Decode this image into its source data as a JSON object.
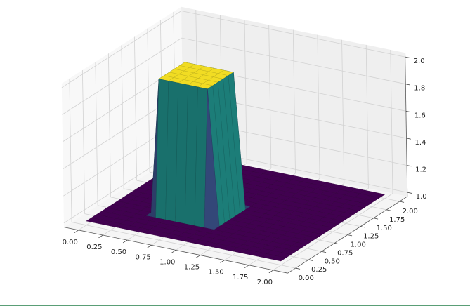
{
  "chart_data": {
    "type": "surface",
    "colormap": "viridis",
    "grid": true,
    "x": [
      0,
      0.1,
      0.2,
      0.3,
      0.4,
      0.5,
      0.6,
      0.7,
      0.8,
      0.9,
      1,
      1.1,
      1.2,
      1.3,
      1.4,
      1.5,
      1.6,
      1.7,
      1.8,
      1.9,
      2
    ],
    "y": [
      0,
      0.1,
      0.2,
      0.3,
      0.4,
      0.5,
      0.6,
      0.7,
      0.8,
      0.9,
      1,
      1.1,
      1.2,
      1.3,
      1.4,
      1.5,
      1.6,
      1.7,
      1.8,
      1.9,
      2
    ],
    "z": [
      [
        1,
        1,
        1,
        1,
        1,
        1,
        1,
        1,
        1,
        1,
        1,
        1,
        1,
        1,
        1,
        1,
        1,
        1,
        1,
        1,
        1
      ],
      [
        1,
        1,
        1,
        1,
        1,
        1,
        1,
        1,
        1,
        1,
        1,
        1,
        1,
        1,
        1,
        1,
        1,
        1,
        1,
        1,
        1
      ],
      [
        1,
        1,
        1,
        1,
        1,
        1,
        1,
        1,
        1,
        1,
        1,
        1,
        1,
        1,
        1,
        1,
        1,
        1,
        1,
        1,
        1
      ],
      [
        1,
        1,
        1,
        1,
        1,
        1,
        1,
        1,
        1,
        1,
        1,
        1,
        1,
        1,
        1,
        1,
        1,
        1,
        1,
        1,
        1
      ],
      [
        1,
        1,
        1,
        1,
        1,
        1,
        1,
        1,
        1,
        1,
        1,
        1,
        1,
        1,
        1,
        1,
        1,
        1,
        1,
        1,
        1
      ],
      [
        1,
        1,
        1,
        1,
        1,
        2,
        2,
        2,
        2,
        2,
        2,
        1,
        1,
        1,
        1,
        1,
        1,
        1,
        1,
        1,
        1
      ],
      [
        1,
        1,
        1,
        1,
        1,
        2,
        2,
        2,
        2,
        2,
        2,
        1,
        1,
        1,
        1,
        1,
        1,
        1,
        1,
        1,
        1
      ],
      [
        1,
        1,
        1,
        1,
        1,
        2,
        2,
        2,
        2,
        2,
        2,
        1,
        1,
        1,
        1,
        1,
        1,
        1,
        1,
        1,
        1
      ],
      [
        1,
        1,
        1,
        1,
        1,
        2,
        2,
        2,
        2,
        2,
        2,
        1,
        1,
        1,
        1,
        1,
        1,
        1,
        1,
        1,
        1
      ],
      [
        1,
        1,
        1,
        1,
        1,
        2,
        2,
        2,
        2,
        2,
        2,
        1,
        1,
        1,
        1,
        1,
        1,
        1,
        1,
        1,
        1
      ],
      [
        1,
        1,
        1,
        1,
        1,
        2,
        2,
        2,
        2,
        2,
        2,
        1,
        1,
        1,
        1,
        1,
        1,
        1,
        1,
        1,
        1
      ],
      [
        1,
        1,
        1,
        1,
        1,
        1,
        1,
        1,
        1,
        1,
        1,
        1,
        1,
        1,
        1,
        1,
        1,
        1,
        1,
        1,
        1
      ],
      [
        1,
        1,
        1,
        1,
        1,
        1,
        1,
        1,
        1,
        1,
        1,
        1,
        1,
        1,
        1,
        1,
        1,
        1,
        1,
        1,
        1
      ],
      [
        1,
        1,
        1,
        1,
        1,
        1,
        1,
        1,
        1,
        1,
        1,
        1,
        1,
        1,
        1,
        1,
        1,
        1,
        1,
        1,
        1
      ],
      [
        1,
        1,
        1,
        1,
        1,
        1,
        1,
        1,
        1,
        1,
        1,
        1,
        1,
        1,
        1,
        1,
        1,
        1,
        1,
        1,
        1
      ],
      [
        1,
        1,
        1,
        1,
        1,
        1,
        1,
        1,
        1,
        1,
        1,
        1,
        1,
        1,
        1,
        1,
        1,
        1,
        1,
        1,
        1
      ],
      [
        1,
        1,
        1,
        1,
        1,
        1,
        1,
        1,
        1,
        1,
        1,
        1,
        1,
        1,
        1,
        1,
        1,
        1,
        1,
        1,
        1
      ],
      [
        1,
        1,
        1,
        1,
        1,
        1,
        1,
        1,
        1,
        1,
        1,
        1,
        1,
        1,
        1,
        1,
        1,
        1,
        1,
        1,
        1
      ],
      [
        1,
        1,
        1,
        1,
        1,
        1,
        1,
        1,
        1,
        1,
        1,
        1,
        1,
        1,
        1,
        1,
        1,
        1,
        1,
        1,
        1
      ],
      [
        1,
        1,
        1,
        1,
        1,
        1,
        1,
        1,
        1,
        1,
        1,
        1,
        1,
        1,
        1,
        1,
        1,
        1,
        1,
        1,
        1
      ],
      [
        1,
        1,
        1,
        1,
        1,
        1,
        1,
        1,
        1,
        1,
        1,
        1,
        1,
        1,
        1,
        1,
        1,
        1,
        1,
        1,
        1
      ]
    ],
    "xlim": [
      -0.15,
      2.15
    ],
    "ylim": [
      -0.15,
      2.15
    ],
    "zlim": [
      0.97,
      2.03
    ],
    "xticks": [
      {
        "value": 0,
        "label": "0.00"
      },
      {
        "value": 0.25,
        "label": "0.25"
      },
      {
        "value": 0.5,
        "label": "0.50"
      },
      {
        "value": 0.75,
        "label": "0.75"
      },
      {
        "value": 1,
        "label": "1.00"
      },
      {
        "value": 1.25,
        "label": "1.25"
      },
      {
        "value": 1.5,
        "label": "1.50"
      },
      {
        "value": 1.75,
        "label": "1.75"
      },
      {
        "value": 2,
        "label": "2.00"
      }
    ],
    "yticks": [
      {
        "value": 0,
        "label": "0.00"
      },
      {
        "value": 0.25,
        "label": "0.25"
      },
      {
        "value": 0.5,
        "label": "0.50"
      },
      {
        "value": 0.75,
        "label": "0.75"
      },
      {
        "value": 1,
        "label": "1.00"
      },
      {
        "value": 1.25,
        "label": "1.25"
      },
      {
        "value": 1.5,
        "label": "1.50"
      },
      {
        "value": 1.75,
        "label": "1.75"
      },
      {
        "value": 2,
        "label": "2.00"
      }
    ],
    "zticks": [
      {
        "value": 1,
        "label": "1.0"
      },
      {
        "value": 1.2,
        "label": "1.2"
      },
      {
        "value": 1.4,
        "label": "1.4"
      },
      {
        "value": 1.6,
        "label": "1.6"
      },
      {
        "value": 1.8,
        "label": "1.8"
      },
      {
        "value": 2,
        "label": "2.0"
      }
    ]
  }
}
